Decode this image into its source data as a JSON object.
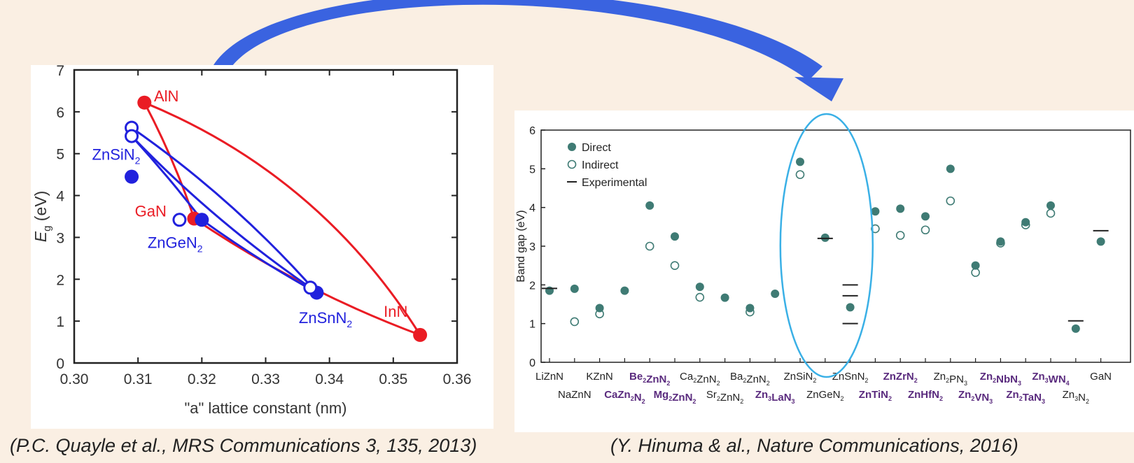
{
  "captions": {
    "left": "(P.C. Quayle et al., MRS Communications 3, 135, 2013)",
    "right": "(Y. Hinuma & al., Nature Communications, 2016)"
  },
  "colors": {
    "arrow": "#3a63e0",
    "red": "#ea1c24",
    "blue": "#2121dd",
    "teal": "#3f7b74",
    "ellipse": "#3ab0e6"
  },
  "chart_data": [
    {
      "type": "scatter",
      "xlabel": "\"a\" lattice constant (nm)",
      "ylabel": "E",
      "ylabel_sub": "g",
      "ylabel_unit": " (eV)",
      "xlim": [
        0.3,
        0.36
      ],
      "ylim": [
        0,
        7
      ],
      "xticks": [
        "0.30",
        "0.31",
        "0.32",
        "0.33",
        "0.34",
        "0.35",
        "0.36"
      ],
      "yticks": [
        "0",
        "1",
        "2",
        "3",
        "4",
        "5",
        "6",
        "7"
      ],
      "labels": [
        {
          "text": "AlN",
          "sub": "",
          "color": "red",
          "x": 0.3125,
          "y": 6.25
        },
        {
          "text": "GaN",
          "sub": "",
          "color": "red",
          "x": 0.3095,
          "y": 3.5
        },
        {
          "text": "InN",
          "sub": "",
          "color": "red",
          "x": 0.3485,
          "y": 1.1
        },
        {
          "text": "ZnSiN",
          "sub": "2",
          "color": "blue",
          "x": 0.3028,
          "y": 4.85
        },
        {
          "text": "ZnGeN",
          "sub": "2",
          "color": "blue",
          "x": 0.3115,
          "y": 2.75
        },
        {
          "text": "ZnSnN",
          "sub": "2",
          "color": "blue",
          "x": 0.3352,
          "y": 0.95
        }
      ],
      "red_points": [
        {
          "name": "AlN",
          "x": 0.311,
          "y": 6.22
        },
        {
          "name": "GaN",
          "x": 0.3188,
          "y": 3.45
        },
        {
          "name": "InN",
          "x": 0.3542,
          "y": 0.67
        }
      ],
      "blue_filled": [
        {
          "x": 0.309,
          "y": 4.45
        },
        {
          "x": 0.32,
          "y": 3.42
        },
        {
          "x": 0.338,
          "y": 1.68
        }
      ],
      "blue_open": [
        {
          "x": 0.309,
          "y": 5.62
        },
        {
          "x": 0.309,
          "y": 5.42
        },
        {
          "x": 0.3165,
          "y": 3.42
        },
        {
          "x": 0.337,
          "y": 1.8
        }
      ]
    },
    {
      "type": "scatter",
      "ylabel": "Band gap (eV)",
      "ylim": [
        0,
        6
      ],
      "yticks": [
        "0",
        "1",
        "2",
        "3",
        "4",
        "5",
        "6"
      ],
      "legend": {
        "position": "top-left",
        "entries": [
          "Direct",
          "Indirect",
          "Experimental"
        ]
      },
      "categories": [
        {
          "label": "LiZnN",
          "subs": [],
          "row": 0,
          "accent": false,
          "direct": 1.85,
          "indirect": null,
          "exp": [
            1.91
          ]
        },
        {
          "label": "NaZnN",
          "subs": [],
          "row": 1,
          "accent": false,
          "direct": 1.9,
          "indirect": 1.05,
          "exp": []
        },
        {
          "label": "KZnN",
          "subs": [],
          "row": 0,
          "accent": false,
          "direct": 1.4,
          "indirect": 1.25,
          "exp": []
        },
        {
          "label": "CaZn2N2",
          "subs": [
            [
              "CaZn",
              false
            ],
            [
              "2",
              true
            ],
            [
              "N",
              false
            ],
            [
              "2",
              true
            ]
          ],
          "row": 1,
          "accent": true,
          "direct": 1.85,
          "indirect": null,
          "exp": []
        },
        {
          "label": "Be2ZnN2",
          "subs": [
            [
              "Be",
              false
            ],
            [
              "2",
              true
            ],
            [
              "ZnN",
              false
            ],
            [
              "2",
              true
            ]
          ],
          "row": 0,
          "accent": true,
          "direct": 4.05,
          "indirect": 3.0,
          "exp": []
        },
        {
          "label": "Mg2ZnN2",
          "subs": [
            [
              "Mg",
              false
            ],
            [
              "2",
              true
            ],
            [
              "ZnN",
              false
            ],
            [
              "2",
              true
            ]
          ],
          "row": 1,
          "accent": true,
          "direct": 3.25,
          "indirect": 2.5,
          "exp": []
        },
        {
          "label": "Ca2ZnN2",
          "subs": [
            [
              "Ca",
              false
            ],
            [
              "2",
              true
            ],
            [
              "ZnN",
              false
            ],
            [
              "2",
              true
            ]
          ],
          "row": 0,
          "accent": false,
          "direct": 1.95,
          "indirect": 1.68,
          "exp": []
        },
        {
          "label": "Sr2ZnN2",
          "subs": [
            [
              "Sr",
              false
            ],
            [
              "2",
              true
            ],
            [
              "ZnN",
              false
            ],
            [
              "2",
              true
            ]
          ],
          "row": 1,
          "accent": false,
          "direct": 1.67,
          "indirect": null,
          "exp": []
        },
        {
          "label": "Ba2ZnN2",
          "subs": [
            [
              "Ba",
              false
            ],
            [
              "2",
              true
            ],
            [
              "ZnN",
              false
            ],
            [
              "2",
              true
            ]
          ],
          "row": 0,
          "accent": false,
          "direct": 1.4,
          "indirect": 1.3,
          "exp": []
        },
        {
          "label": "Zn3LaN3",
          "subs": [
            [
              "Zn",
              false
            ],
            [
              "3",
              true
            ],
            [
              "LaN",
              false
            ],
            [
              "3",
              true
            ]
          ],
          "row": 1,
          "accent": true,
          "direct": 1.77,
          "indirect": null,
          "exp": []
        },
        {
          "label": "ZnSiN2",
          "subs": [
            [
              "ZnSiN",
              false
            ],
            [
              "2",
              true
            ]
          ],
          "row": 0,
          "accent": false,
          "direct": 5.18,
          "indirect": 4.85,
          "exp": []
        },
        {
          "label": "ZnGeN2",
          "subs": [
            [
              "ZnGeN",
              false
            ],
            [
              "2",
              true
            ]
          ],
          "row": 1,
          "accent": false,
          "direct": 3.22,
          "indirect": null,
          "exp": [
            3.2
          ]
        },
        {
          "label": "ZnSnN2",
          "subs": [
            [
              "ZnSnN",
              false
            ],
            [
              "2",
              true
            ]
          ],
          "row": 0,
          "accent": false,
          "direct": 1.42,
          "indirect": null,
          "exp": [
            2.0,
            1.72,
            1.0
          ]
        },
        {
          "label": "ZnTiN2",
          "subs": [
            [
              "ZnTiN",
              false
            ],
            [
              "2",
              true
            ]
          ],
          "row": 1,
          "accent": true,
          "direct": 3.9,
          "indirect": 3.45,
          "exp": []
        },
        {
          "label": "ZnZrN2",
          "subs": [
            [
              "ZnZrN",
              false
            ],
            [
              "2",
              true
            ]
          ],
          "row": 0,
          "accent": true,
          "direct": 3.97,
          "indirect": 3.28,
          "exp": []
        },
        {
          "label": "ZnHfN2",
          "subs": [
            [
              "ZnHfN",
              false
            ],
            [
              "2",
              true
            ]
          ],
          "row": 1,
          "accent": true,
          "direct": 3.77,
          "indirect": 3.42,
          "exp": []
        },
        {
          "label": "Zn2PN3",
          "subs": [
            [
              "Zn",
              false
            ],
            [
              "2",
              true
            ],
            [
              "PN",
              false
            ],
            [
              "3",
              true
            ]
          ],
          "row": 0,
          "accent": false,
          "direct": 5.0,
          "indirect": 4.17,
          "exp": []
        },
        {
          "label": "Zn2VN3",
          "subs": [
            [
              "Zn",
              false
            ],
            [
              "2",
              true
            ],
            [
              "VN",
              false
            ],
            [
              "3",
              true
            ]
          ],
          "row": 1,
          "accent": true,
          "direct": 2.5,
          "indirect": 2.32,
          "exp": []
        },
        {
          "label": "Zn2NbN3",
          "subs": [
            [
              "Zn",
              false
            ],
            [
              "2",
              true
            ],
            [
              "NbN",
              false
            ],
            [
              "3",
              true
            ]
          ],
          "row": 0,
          "accent": true,
          "direct": 3.12,
          "indirect": 3.08,
          "exp": []
        },
        {
          "label": "Zn2TaN3",
          "subs": [
            [
              "Zn",
              false
            ],
            [
              "2",
              true
            ],
            [
              "TaN",
              false
            ],
            [
              "3",
              true
            ]
          ],
          "row": 1,
          "accent": true,
          "direct": 3.62,
          "indirect": 3.55,
          "exp": []
        },
        {
          "label": "Zn3WN4",
          "subs": [
            [
              "Zn",
              false
            ],
            [
              "3",
              true
            ],
            [
              "WN",
              false
            ],
            [
              "4",
              true
            ]
          ],
          "row": 0,
          "accent": true,
          "direct": 4.05,
          "indirect": 3.85,
          "exp": []
        },
        {
          "label": "Zn3N2",
          "subs": [
            [
              "Zn",
              false
            ],
            [
              "3",
              true
            ],
            [
              "N",
              false
            ],
            [
              "2",
              true
            ]
          ],
          "row": 1,
          "accent": false,
          "direct": 0.87,
          "indirect": null,
          "exp": [
            1.07
          ]
        },
        {
          "label": "GaN",
          "subs": [],
          "row": 0,
          "accent": false,
          "direct": 3.12,
          "indirect": null,
          "exp": [
            3.4
          ]
        }
      ]
    }
  ]
}
